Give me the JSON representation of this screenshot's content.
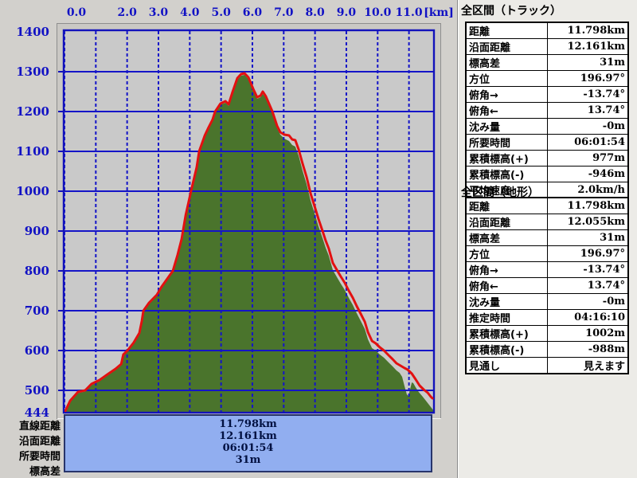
{
  "window": {
    "chart_bg": "#d2d0cc",
    "panel_bg": "#ecebe7",
    "accent_blue": "#1111c4",
    "grid_blue": "#1414c8",
    "track_red": "#e31010",
    "terrain_green": "#4a742c",
    "plot_bg": "#c9c9c9",
    "summary_box_bg": "#91aef0",
    "summary_box_border": "#28356b"
  },
  "chart_data": {
    "type": "area",
    "title": "",
    "xlabel": "distance",
    "ylabel": "elevation",
    "x_axis": {
      "unit_label": "[km]",
      "tick_values": [
        0,
        2,
        3,
        4,
        5,
        6,
        7,
        8,
        9,
        10,
        11
      ],
      "tick_labels": [
        "0.0",
        "2.0",
        "3.0",
        "4.0",
        "5.0",
        "6.0",
        "7.0",
        "8.0",
        "9.0",
        "10.0",
        "11.0"
      ],
      "range": [
        0,
        11.798
      ]
    },
    "y_axis": {
      "unit": "m",
      "tick_values": [
        1400,
        1300,
        1200,
        1100,
        1000,
        900,
        800,
        700,
        600,
        500,
        444
      ],
      "range": [
        444,
        1400
      ]
    },
    "grid": {
      "h_interval_m": 100,
      "v_interval_km": 1,
      "h_style": "solid",
      "v_style": "dashed"
    },
    "series": [
      {
        "name": "terrain-profile",
        "kind": "area",
        "color": "#4a742c",
        "points": [
          [
            0,
            444
          ],
          [
            0.18,
            471
          ],
          [
            0.43,
            493
          ],
          [
            0.66,
            497
          ],
          [
            0.86,
            513
          ],
          [
            1.12,
            523
          ],
          [
            1.37,
            537
          ],
          [
            1.63,
            551
          ],
          [
            1.81,
            563
          ],
          [
            1.88,
            587
          ],
          [
            2.01,
            597
          ],
          [
            2.21,
            617
          ],
          [
            2.39,
            641
          ],
          [
            2.47,
            671
          ],
          [
            2.52,
            697
          ],
          [
            2.7,
            717
          ],
          [
            2.95,
            737
          ],
          [
            3.1,
            757
          ],
          [
            3.28,
            777
          ],
          [
            3.46,
            797
          ],
          [
            3.61,
            837
          ],
          [
            3.74,
            877
          ],
          [
            3.87,
            937
          ],
          [
            4.04,
            997
          ],
          [
            4.22,
            1057
          ],
          [
            4.3,
            1097
          ],
          [
            4.48,
            1137
          ],
          [
            4.6,
            1157
          ],
          [
            4.73,
            1177
          ],
          [
            4.81,
            1197
          ],
          [
            4.98,
            1217
          ],
          [
            5.14,
            1222
          ],
          [
            5.24,
            1214
          ],
          [
            5.37,
            1246
          ],
          [
            5.52,
            1280
          ],
          [
            5.64,
            1290
          ],
          [
            5.75,
            1292
          ],
          [
            5.87,
            1282
          ],
          [
            6.03,
            1252
          ],
          [
            6.15,
            1232
          ],
          [
            6.26,
            1236
          ],
          [
            6.33,
            1244
          ],
          [
            6.43,
            1234
          ],
          [
            6.53,
            1214
          ],
          [
            6.64,
            1194
          ],
          [
            6.79,
            1158
          ],
          [
            6.89,
            1142
          ],
          [
            7.02,
            1132
          ],
          [
            7.17,
            1126
          ],
          [
            7.27,
            1116
          ],
          [
            7.37,
            1112
          ],
          [
            7.48,
            1088
          ],
          [
            7.6,
            1052
          ],
          [
            7.73,
            1018
          ],
          [
            7.86,
            976
          ],
          [
            7.98,
            946
          ],
          [
            8.11,
            912
          ],
          [
            8.24,
            882
          ],
          [
            8.34,
            858
          ],
          [
            8.44,
            838
          ],
          [
            8.57,
            802
          ],
          [
            8.7,
            784
          ],
          [
            8.82,
            768
          ],
          [
            8.95,
            752
          ],
          [
            9.08,
            732
          ],
          [
            9.21,
            714
          ],
          [
            9.33,
            694
          ],
          [
            9.46,
            674
          ],
          [
            9.59,
            654
          ],
          [
            9.69,
            628
          ],
          [
            9.82,
            606
          ],
          [
            9.94,
            600
          ],
          [
            10.07,
            590
          ],
          [
            10.2,
            582
          ],
          [
            10.35,
            570
          ],
          [
            10.48,
            560
          ],
          [
            10.6,
            550
          ],
          [
            10.7,
            544
          ],
          [
            10.78,
            534
          ],
          [
            10.86,
            510
          ],
          [
            10.93,
            490
          ],
          [
            10.98,
            486
          ],
          [
            11.04,
            504
          ],
          [
            11.09,
            520
          ],
          [
            11.14,
            518
          ],
          [
            11.21,
            508
          ],
          [
            11.31,
            496
          ],
          [
            11.42,
            486
          ],
          [
            11.52,
            476
          ],
          [
            11.62,
            466
          ],
          [
            11.72,
            456
          ],
          [
            11.8,
            448
          ]
        ]
      },
      {
        "name": "track-elevation",
        "kind": "line",
        "color": "#e31010",
        "points": [
          [
            0,
            444
          ],
          [
            0.18,
            474
          ],
          [
            0.43,
            496
          ],
          [
            0.66,
            500
          ],
          [
            0.86,
            516
          ],
          [
            1.12,
            526
          ],
          [
            1.37,
            540
          ],
          [
            1.63,
            554
          ],
          [
            1.81,
            566
          ],
          [
            1.88,
            590
          ],
          [
            2.01,
            600
          ],
          [
            2.21,
            620
          ],
          [
            2.39,
            644
          ],
          [
            2.47,
            674
          ],
          [
            2.52,
            700
          ],
          [
            2.7,
            720
          ],
          [
            2.95,
            740
          ],
          [
            3.1,
            760
          ],
          [
            3.28,
            780
          ],
          [
            3.46,
            800
          ],
          [
            3.61,
            840
          ],
          [
            3.74,
            880
          ],
          [
            3.87,
            940
          ],
          [
            4.04,
            1000
          ],
          [
            4.22,
            1060
          ],
          [
            4.3,
            1100
          ],
          [
            4.48,
            1140
          ],
          [
            4.6,
            1160
          ],
          [
            4.73,
            1180
          ],
          [
            4.81,
            1200
          ],
          [
            4.98,
            1220
          ],
          [
            5.14,
            1226
          ],
          [
            5.24,
            1218
          ],
          [
            5.37,
            1250
          ],
          [
            5.52,
            1284
          ],
          [
            5.64,
            1294
          ],
          [
            5.75,
            1296
          ],
          [
            5.87,
            1286
          ],
          [
            6.03,
            1256
          ],
          [
            6.15,
            1236
          ],
          [
            6.26,
            1240
          ],
          [
            6.33,
            1250
          ],
          [
            6.43,
            1238
          ],
          [
            6.53,
            1220
          ],
          [
            6.64,
            1200
          ],
          [
            6.79,
            1164
          ],
          [
            6.89,
            1148
          ],
          [
            7.02,
            1142
          ],
          [
            7.17,
            1140
          ],
          [
            7.27,
            1130
          ],
          [
            7.37,
            1128
          ],
          [
            7.48,
            1104
          ],
          [
            7.6,
            1070
          ],
          [
            7.73,
            1036
          ],
          [
            7.86,
            994
          ],
          [
            7.98,
            964
          ],
          [
            8.11,
            930
          ],
          [
            8.24,
            900
          ],
          [
            8.34,
            876
          ],
          [
            8.44,
            856
          ],
          [
            8.57,
            820
          ],
          [
            8.7,
            802
          ],
          [
            8.82,
            786
          ],
          [
            8.95,
            770
          ],
          [
            9.08,
            750
          ],
          [
            9.21,
            732
          ],
          [
            9.33,
            712
          ],
          [
            9.46,
            692
          ],
          [
            9.59,
            672
          ],
          [
            9.69,
            646
          ],
          [
            9.82,
            624
          ],
          [
            9.94,
            618
          ],
          [
            10.07,
            608
          ],
          [
            10.2,
            600
          ],
          [
            10.35,
            588
          ],
          [
            10.48,
            578
          ],
          [
            10.6,
            568
          ],
          [
            10.73,
            562
          ],
          [
            10.86,
            556
          ],
          [
            10.96,
            552
          ],
          [
            11.09,
            542
          ],
          [
            11.21,
            528
          ],
          [
            11.34,
            512
          ],
          [
            11.47,
            502
          ],
          [
            11.6,
            494
          ],
          [
            11.7,
            484
          ],
          [
            11.75,
            480
          ]
        ]
      }
    ]
  },
  "summary_box": {
    "rows": [
      {
        "label": "直線距離",
        "value": "11.798km"
      },
      {
        "label": "沿面距離",
        "value": "12.161km"
      },
      {
        "label": "所要時間",
        "value": "06:01:54"
      },
      {
        "label": "標高差",
        "value": "31m"
      }
    ]
  },
  "panels": [
    {
      "title": "全区間（トラック）",
      "rows": [
        {
          "label": "距離",
          "value": "11.798km"
        },
        {
          "label": "沿面距離",
          "value": "12.161km"
        },
        {
          "label": "標高差",
          "value": "31m"
        },
        {
          "label": "方位",
          "value": "196.97°"
        },
        {
          "label": "俯角→",
          "value": "-13.74°"
        },
        {
          "label": "俯角←",
          "value": "13.74°"
        },
        {
          "label": "沈み量",
          "value": "-0m"
        },
        {
          "label": "所要時間",
          "value": "06:01:54"
        },
        {
          "label": "累積標高(+)",
          "value": "977m"
        },
        {
          "label": "累積標高(-)",
          "value": "-946m"
        },
        {
          "label": "平均速度",
          "value": "2.0km/h"
        }
      ]
    },
    {
      "title": "全区間（地形）",
      "rows": [
        {
          "label": "距離",
          "value": "11.798km"
        },
        {
          "label": "沿面距離",
          "value": "12.055km"
        },
        {
          "label": "標高差",
          "value": "31m"
        },
        {
          "label": "方位",
          "value": "196.97°"
        },
        {
          "label": "俯角→",
          "value": "-13.74°"
        },
        {
          "label": "俯角←",
          "value": "13.74°"
        },
        {
          "label": "沈み量",
          "value": "-0m"
        },
        {
          "label": "推定時間",
          "value": "04:16:10"
        },
        {
          "label": "累積標高(+)",
          "value": "1002m"
        },
        {
          "label": "累積標高(-)",
          "value": "-988m"
        },
        {
          "label": "見通し",
          "value": "見えます"
        }
      ]
    }
  ]
}
